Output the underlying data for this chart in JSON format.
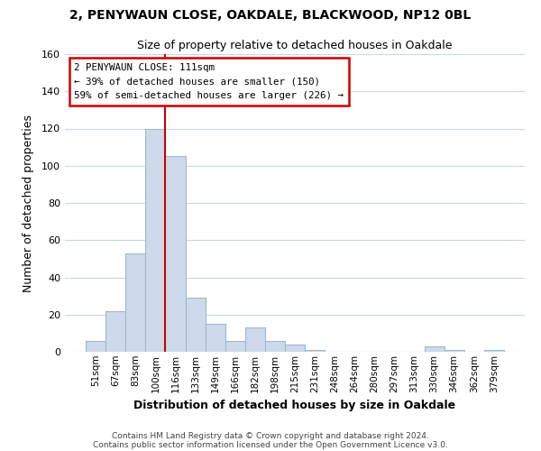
{
  "title_line1": "2, PENYWAUN CLOSE, OAKDALE, BLACKWOOD, NP12 0BL",
  "title_line2": "Size of property relative to detached houses in Oakdale",
  "xlabel": "Distribution of detached houses by size in Oakdale",
  "ylabel": "Number of detached properties",
  "bar_labels": [
    "51sqm",
    "67sqm",
    "83sqm",
    "100sqm",
    "116sqm",
    "133sqm",
    "149sqm",
    "166sqm",
    "182sqm",
    "198sqm",
    "215sqm",
    "231sqm",
    "248sqm",
    "264sqm",
    "280sqm",
    "297sqm",
    "313sqm",
    "330sqm",
    "346sqm",
    "362sqm",
    "379sqm"
  ],
  "bar_heights": [
    6,
    22,
    53,
    120,
    105,
    29,
    15,
    6,
    13,
    6,
    4,
    1,
    0,
    0,
    0,
    0,
    0,
    3,
    1,
    0,
    1
  ],
  "bar_color": "#ccdaeb",
  "bar_edge_color": "#a0b8ce",
  "vline_color": "#cc0000",
  "vline_position": 3.5,
  "ylim": [
    0,
    160
  ],
  "yticks": [
    0,
    20,
    40,
    60,
    80,
    100,
    120,
    140,
    160
  ],
  "annotation_title": "2 PENYWAUN CLOSE: 111sqm",
  "annotation_line1": "← 39% of detached houses are smaller (150)",
  "annotation_line2": "59% of semi-detached houses are larger (226) →",
  "annotation_box_color": "#ffffff",
  "annotation_box_edge": "#cc0000",
  "footer_line1": "Contains HM Land Registry data © Crown copyright and database right 2024.",
  "footer_line2": "Contains public sector information licensed under the Open Government Licence v3.0.",
  "background_color": "#ffffff",
  "grid_color": "#ccd8e4"
}
